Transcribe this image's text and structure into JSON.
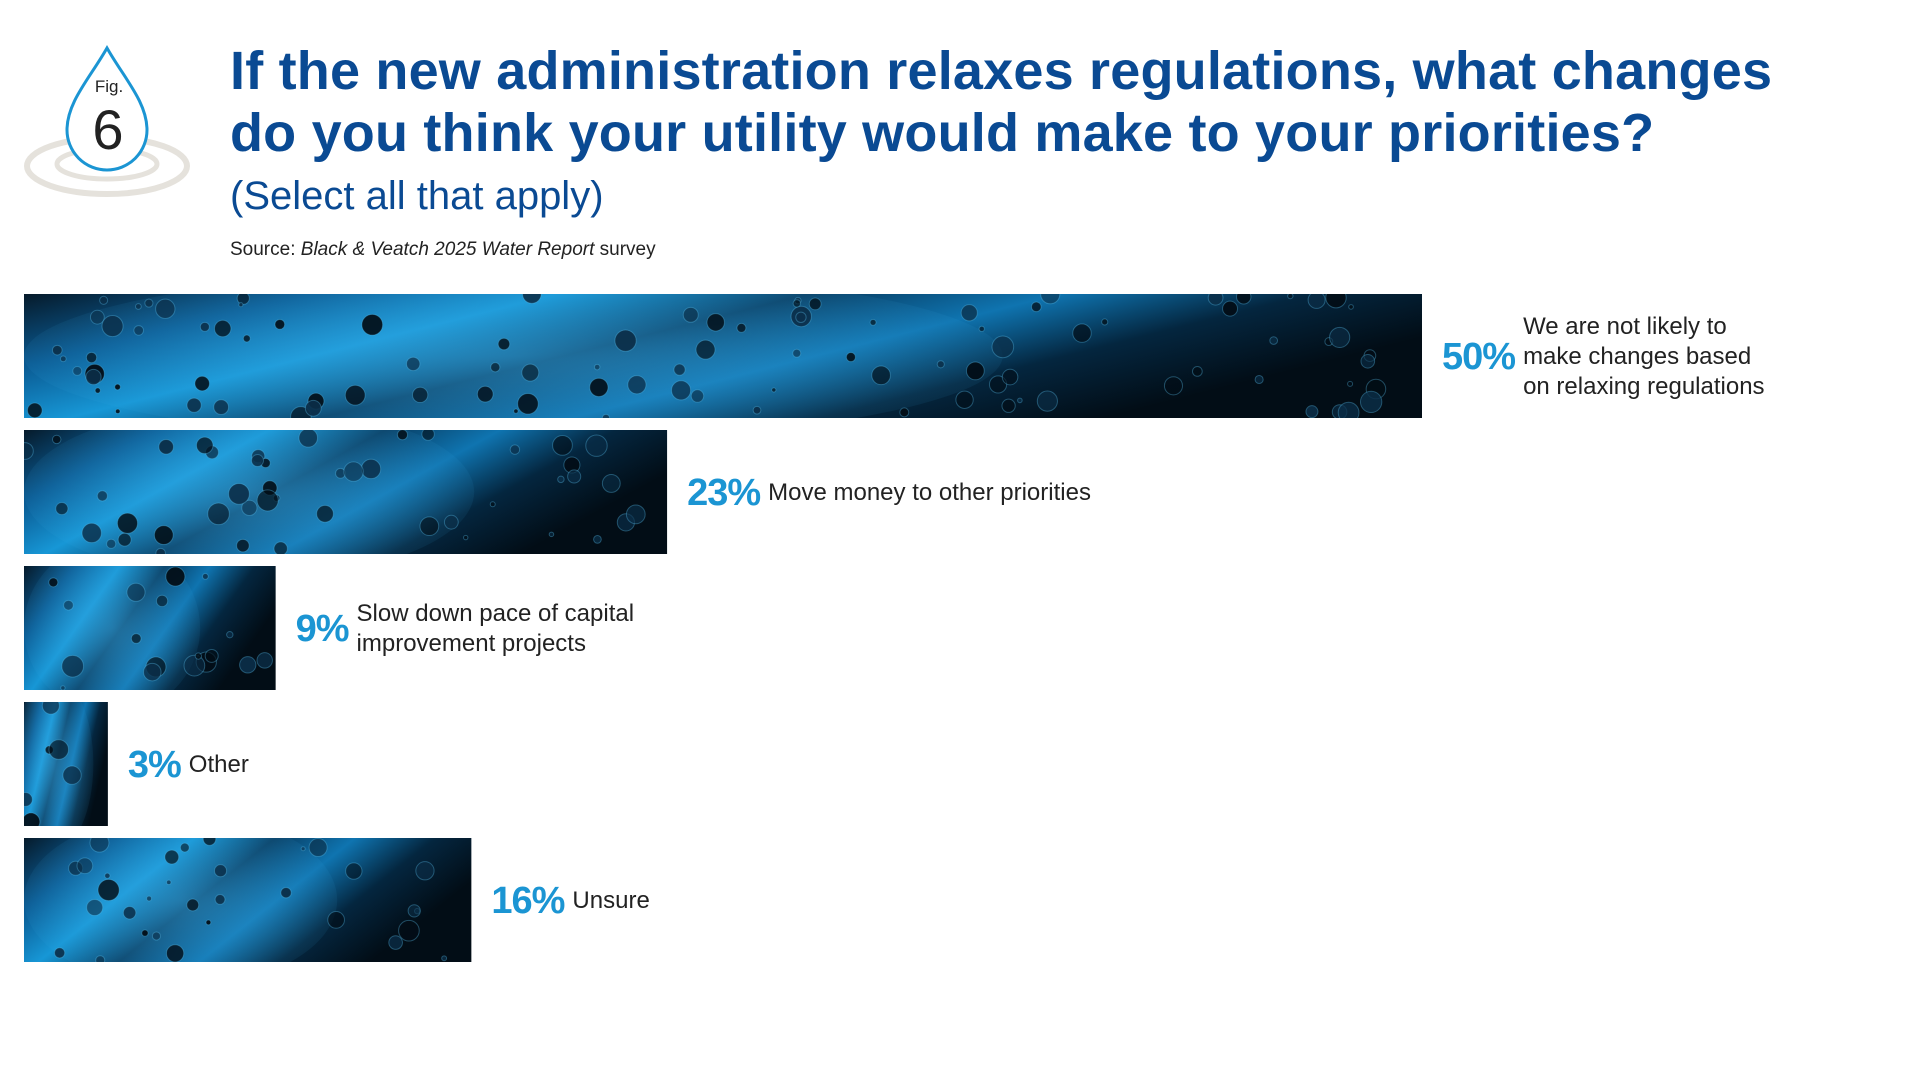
{
  "figure": {
    "fig_label": "Fig.",
    "fig_number": "6"
  },
  "header": {
    "title": "If the new administration relaxes regulations, what changes\ndo you think your utility would make to your priorities?",
    "subtitle": "(Select all that apply)",
    "source_prefix": "Source: ",
    "source_italic": "Black & Veatch 2025 Water Report",
    "source_suffix": " survey"
  },
  "colors": {
    "title": "#0a4a93",
    "percent": "#1b95d3",
    "label": "#222222",
    "bar_dark": "#061a2a",
    "bar_mid": "#0a5a92",
    "bar_bright": "#1797d6",
    "icon_ripple": "#e5e2dc"
  },
  "chart_data": {
    "type": "bar",
    "orientation": "horizontal",
    "categories": [
      "We are not likely to\nmake changes based\non relaxing regulations",
      "Move money to other priorities",
      "Slow down pace of capital\nimprovement projects",
      "Other",
      "Unsure"
    ],
    "values": [
      50,
      23,
      9,
      3,
      16
    ],
    "value_labels": [
      "50%",
      "23%",
      "9%",
      "3%",
      "16%"
    ],
    "xlim": [
      0,
      50
    ],
    "title": "If the new administration relaxes regulations, what changes do you think your utility would make to your priorities?",
    "subtitle": "(Select all that apply)",
    "xlabel": "",
    "ylabel": "",
    "grid": false,
    "legend": "none"
  }
}
